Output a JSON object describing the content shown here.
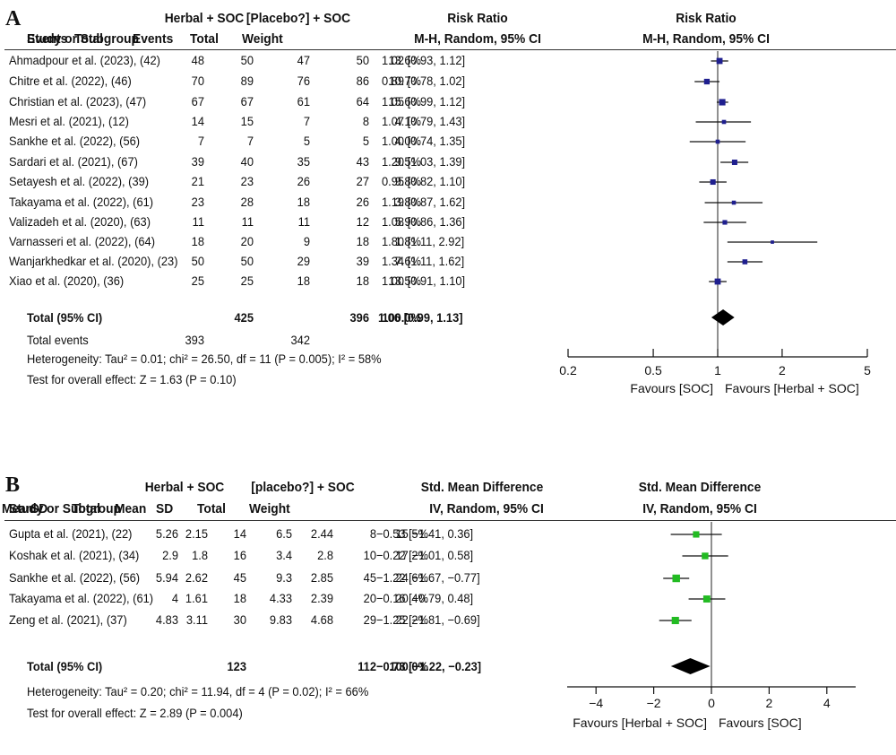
{
  "chart_data": [
    {
      "panel": "A",
      "type": "forest",
      "header": {
        "group1": "Herbal + SOC",
        "group2": "[Placebo?] + SOC",
        "effect_title": "Risk Ratio",
        "study_col": "Study or Subgroup",
        "events": "Events",
        "total": "Total",
        "weight": "Weight",
        "method": "M-H, Random, 95% CI",
        "plot_title": "Risk Ratio",
        "plot_method": "M-H, Random, 95% CI"
      },
      "studies": [
        {
          "name": "Ahmadpour et al. (2023), (42)",
          "e1": "48",
          "n1": "50",
          "e2": "47",
          "n2": "50",
          "weight": "13.6%",
          "ci_text": "1.02 [0.93, 1.12]",
          "est": 1.02,
          "lo": 0.93,
          "hi": 1.12,
          "w": 13.6
        },
        {
          "name": "Chitre et al. (2022), (46)",
          "e1": "70",
          "n1": "89",
          "e2": "76",
          "n2": "86",
          "weight": "10.7%",
          "ci_text": "0.89 [0.78, 1.02]",
          "est": 0.89,
          "lo": 0.78,
          "hi": 1.02,
          "w": 10.7
        },
        {
          "name": "Christian et al. (2023), (47)",
          "e1": "67",
          "n1": "67",
          "e2": "61",
          "n2": "64",
          "weight": "15.6%",
          "ci_text": "1.05 [0.99, 1.12]",
          "est": 1.05,
          "lo": 0.99,
          "hi": 1.12,
          "w": 15.6
        },
        {
          "name": "Mesri et al. (2021), (12)",
          "e1": "14",
          "n1": "15",
          "e2": "7",
          "n2": "8",
          "weight": "4.1%",
          "ci_text": "1.07 [0.79, 1.43]",
          "est": 1.07,
          "lo": 0.79,
          "hi": 1.43,
          "w": 4.1
        },
        {
          "name": "Sankhe et al. (2022), (56)",
          "e1": "7",
          "n1": "7",
          "e2": "5",
          "n2": "5",
          "weight": "4.0%",
          "ci_text": "1.00 [0.74, 1.35]",
          "est": 1.0,
          "lo": 0.74,
          "hi": 1.35,
          "w": 4.0
        },
        {
          "name": "Sardari et al. (2021), (67)",
          "e1": "39",
          "n1": "40",
          "e2": "35",
          "n2": "43",
          "weight": "9.5%",
          "ci_text": "1.20 [1.03, 1.39]",
          "est": 1.2,
          "lo": 1.03,
          "hi": 1.39,
          "w": 9.5
        },
        {
          "name": "Setayesh et al. (2022), (39)",
          "e1": "21",
          "n1": "23",
          "e2": "26",
          "n2": "27",
          "weight": "9.8%",
          "ci_text": "0.95 [0.82, 1.10]",
          "est": 0.95,
          "lo": 0.82,
          "hi": 1.1,
          "w": 9.8
        },
        {
          "name": "Takayama et al. (2022), (61)",
          "e1": "23",
          "n1": "28",
          "e2": "18",
          "n2": "26",
          "weight": "3.8%",
          "ci_text": "1.19 [0.87, 1.62]",
          "est": 1.19,
          "lo": 0.87,
          "hi": 1.62,
          "w": 3.8
        },
        {
          "name": "Valizadeh et al. (2020), (63)",
          "e1": "11",
          "n1": "11",
          "e2": "11",
          "n2": "12",
          "weight": "5.9%",
          "ci_text": "1.08 [0.86, 1.36]",
          "est": 1.08,
          "lo": 0.86,
          "hi": 1.36,
          "w": 5.9
        },
        {
          "name": "Varnasseri et al. (2022), (64)",
          "e1": "18",
          "n1": "20",
          "e2": "9",
          "n2": "18",
          "weight": "1.8%",
          "ci_text": "1.80 [1.11, 2.92]",
          "est": 1.8,
          "lo": 1.11,
          "hi": 2.92,
          "w": 1.8
        },
        {
          "name": "Wanjarkhedkar et al. (2020), (23)",
          "e1": "50",
          "n1": "50",
          "e2": "29",
          "n2": "39",
          "weight": "7.6%",
          "ci_text": "1.34 [1.11, 1.62]",
          "est": 1.34,
          "lo": 1.11,
          "hi": 1.62,
          "w": 7.6
        },
        {
          "name": "Xiao et al. (2020), (36)",
          "e1": "25",
          "n1": "25",
          "e2": "18",
          "n2": "18",
          "weight": "13.5%",
          "ci_text": "1.00 [0.91, 1.10]",
          "est": 1.0,
          "lo": 0.91,
          "hi": 1.1,
          "w": 13.5
        }
      ],
      "total": {
        "label": "Total (95% CI)",
        "n1": "425",
        "n2": "396",
        "weight": "100.0%",
        "ci_text": "1.06 [0.99, 1.13]",
        "est": 1.06,
        "lo": 0.99,
        "hi": 1.13
      },
      "total_events": {
        "label": "Total events",
        "e1": "393",
        "e2": "342"
      },
      "heterogeneity": "Heterogeneity: Tau² = 0.01; chi² = 26.50, df = 11 (P = 0.005); I² = 58%",
      "overall_effect": "Test for overall effect: Z = 1.63 (P = 0.10)",
      "axis": {
        "scale": "log",
        "ticks": [
          0.2,
          0.5,
          1,
          2,
          5
        ],
        "tick_labels": [
          "0.2",
          "0.5",
          "1",
          "2",
          "5"
        ],
        "xlim": [
          0.2,
          5
        ]
      },
      "favours_left": "Favours [SOC]",
      "favours_right": "Favours [Herbal + SOC]",
      "marker_color": "#1f1f8f"
    },
    {
      "panel": "B",
      "type": "forest",
      "header": {
        "group1": "Herbal + SOC",
        "group2": "[placebo?] + SOC",
        "effect_title": "Std. Mean Difference",
        "study_col": "Study or Subgroup",
        "mean": "Mean",
        "sd": "SD",
        "total": "Total",
        "weight": "Weight",
        "method": "IV, Random, 95% CI",
        "plot_title": "Std. Mean Difference",
        "plot_method": "IV, Random, 95% CI"
      },
      "studies": [
        {
          "name": "Gupta et al. (2021), (22)",
          "m1": "5.26",
          "sd1": "2.15",
          "n1": "14",
          "m2": "6.5",
          "sd2": "2.44",
          "n2": "8",
          "weight": "15.5%",
          "ci_text": "−0.53 [−1.41, 0.36]",
          "est": -0.53,
          "lo": -1.41,
          "hi": 0.36,
          "w": 15.5
        },
        {
          "name": "Koshak et al. (2021), (34)",
          "m1": "2.9",
          "sd1": "1.8",
          "n1": "16",
          "m2": "3.4",
          "sd2": "2.8",
          "n2": "10",
          "weight": "17.2%",
          "ci_text": "−0.22 [−1.01, 0.58]",
          "est": -0.22,
          "lo": -1.01,
          "hi": 0.58,
          "w": 17.2
        },
        {
          "name": "Sankhe et al. (2022), (56)",
          "m1": "5.94",
          "sd1": "2.62",
          "n1": "45",
          "m2": "9.3",
          "sd2": "2.85",
          "n2": "45",
          "weight": "24.6%",
          "ci_text": "−1.22 [−1.67, −0.77]",
          "est": -1.22,
          "lo": -1.67,
          "hi": -0.77,
          "w": 24.6
        },
        {
          "name": "Takayama et al. (2022), (61)",
          "m1": "4",
          "sd1": "1.61",
          "n1": "18",
          "m2": "4.33",
          "sd2": "2.39",
          "n2": "20",
          "weight": "20.4%",
          "ci_text": "−0.16 [−0.79, 0.48]",
          "est": -0.16,
          "lo": -0.79,
          "hi": 0.48,
          "w": 20.4
        },
        {
          "name": "Zeng et al. (2021), (37)",
          "m1": "4.83",
          "sd1": "3.11",
          "n1": "30",
          "m2": "9.83",
          "sd2": "4.68",
          "n2": "29",
          "weight": "22.2%",
          "ci_text": "−1.25 [−1.81, −0.69]",
          "est": -1.25,
          "lo": -1.81,
          "hi": -0.69,
          "w": 22.2
        }
      ],
      "total": {
        "label": "Total (95% CI)",
        "n1": "123",
        "n2": "112",
        "weight": "100.0%",
        "ci_text": "−0.73 [−1.22, −0.23]",
        "est": -0.73,
        "lo": -1.22,
        "hi": -0.23
      },
      "heterogeneity": "Heterogeneity: Tau² = 0.20; chi² = 11.94, df = 4 (P = 0.02); I² = 66%",
      "overall_effect": "Test for overall effect: Z = 2.89 (P = 0.004)",
      "axis": {
        "scale": "linear",
        "ticks": [
          -4,
          -2,
          0,
          2,
          4
        ],
        "tick_labels": [
          "−4",
          "−2",
          "0",
          "2",
          "4"
        ],
        "xlim": [
          -5,
          5
        ]
      },
      "favours_left": "Favours [Herbal + SOC]",
      "favours_right": "Favours [SOC]",
      "marker_color": "#22bb22"
    }
  ]
}
